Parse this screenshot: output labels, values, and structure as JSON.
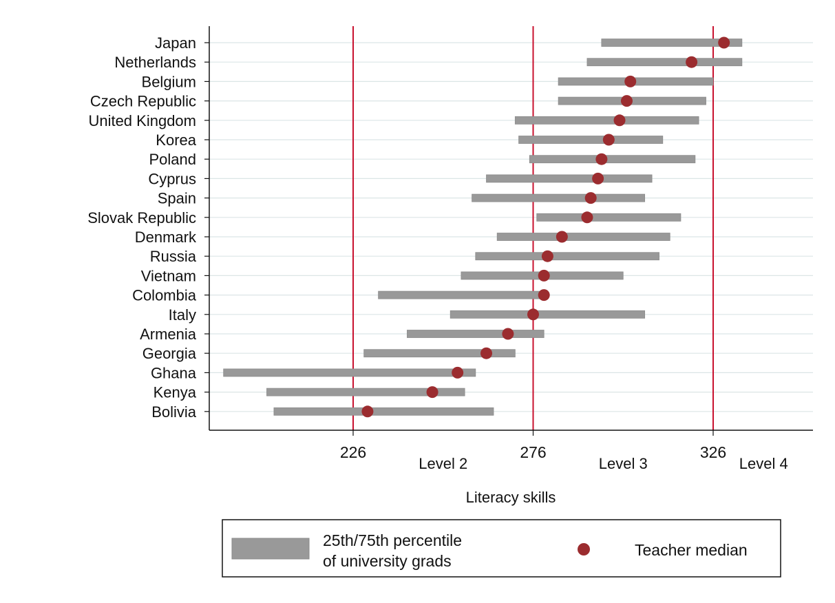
{
  "chart_data": {
    "type": "range_dot",
    "xlabel": "Literacy skills",
    "xticks": [
      226,
      276,
      326
    ],
    "xlim": [
      186,
      353
    ],
    "reference_lines": [
      226,
      276,
      326
    ],
    "level_labels": [
      {
        "label": "Level 2",
        "x": 251
      },
      {
        "label": "Level 3",
        "x": 301
      },
      {
        "label": "Level 4",
        "x": 340
      }
    ],
    "grid": "horizontal",
    "colors": {
      "bar": "#999999",
      "dot": "#9b2c2f",
      "refline": "#c8102e",
      "grid": "#dbe5e6"
    },
    "categories": [
      "Japan",
      "Netherlands",
      "Belgium",
      "Czech Republic",
      "United Kingdom",
      "Korea",
      "Poland",
      "Cyprus",
      "Spain",
      "Slovak Republic",
      "Denmark",
      "Russia",
      "Vietnam",
      "Colombia",
      "Italy",
      "Armenia",
      "Georgia",
      "Ghana",
      "Kenya",
      "Bolivia"
    ],
    "series": [
      {
        "name": "25th/75th percentile of university grads",
        "low": [
          295,
          291,
          283,
          283,
          271,
          272,
          275,
          263,
          259,
          277,
          266,
          260,
          256,
          233,
          253,
          241,
          229,
          190,
          202,
          204
        ],
        "high": [
          334,
          334,
          326,
          324,
          322,
          312,
          321,
          309,
          307,
          317,
          314,
          311,
          301,
          278,
          307,
          279,
          271,
          260,
          257,
          265
        ]
      },
      {
        "name": "Teacher median",
        "values": [
          329,
          320,
          303,
          302,
          300,
          297,
          295,
          294,
          292,
          291,
          284,
          280,
          279,
          279,
          276,
          269,
          263,
          255,
          248,
          230
        ]
      }
    ],
    "legend": {
      "position": "bottom",
      "items": [
        {
          "label_lines": [
            "25th/75th percentile",
            "of university grads"
          ],
          "marker": "bar"
        },
        {
          "label_lines": [
            "Teacher median"
          ],
          "marker": "dot"
        }
      ]
    }
  }
}
